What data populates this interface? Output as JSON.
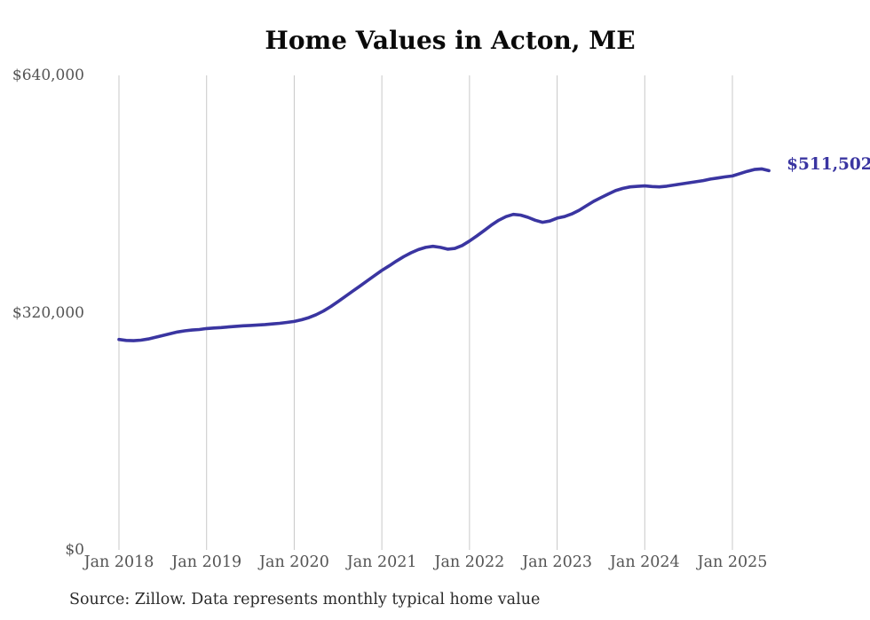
{
  "chart_data": {
    "type": "line",
    "title": "Home Values in Acton, ME",
    "series": [
      {
        "name": "Monthly typical home value",
        "values": [
          283900,
          282600,
          282200,
          282900,
          284500,
          286800,
          289300,
          291700,
          293900,
          295500,
          296500,
          297300,
          298600,
          299300,
          299900,
          300700,
          301600,
          302300,
          302800,
          303400,
          304000,
          304800,
          305700,
          306900,
          308200,
          310400,
          313300,
          317200,
          322200,
          328200,
          334900,
          341900,
          348900,
          355900,
          362900,
          370000,
          377000,
          383200,
          389600,
          395600,
          400700,
          405100,
          408100,
          409500,
          408100,
          405600,
          406600,
          410600,
          416600,
          423500,
          430600,
          438100,
          444600,
          449600,
          452600,
          451600,
          448600,
          444700,
          441900,
          443600,
          447500,
          449600,
          453100,
          458100,
          464100,
          470100,
          475100,
          480100,
          484600,
          487600,
          489600,
          490300,
          490900,
          490100,
          489600,
          490600,
          492100,
          493600,
          495100,
          496600,
          498100,
          500100,
          501600,
          503100,
          504400,
          507500,
          510600,
          513100,
          513900,
          511502
        ]
      }
    ],
    "x_start": "2018-01",
    "x_end": "2025-06",
    "frequency": "monthly",
    "x_tick_labels": [
      "Jan 2018",
      "Jan 2019",
      "Jan 2020",
      "Jan 2021",
      "Jan 2022",
      "Jan 2023",
      "Jan 2024",
      "Jan 2025"
    ],
    "y_tick_labels": [
      "$0",
      "$320,000",
      "$640,000"
    ],
    "y_tick_values": [
      0,
      320000,
      640000
    ],
    "ylim": [
      0,
      640000
    ],
    "grid": "vertical",
    "legend": "none",
    "line_color": "#3a35a1",
    "grid_color": "#c8c8c8",
    "end_label": "$511,502",
    "latest_value": 511502,
    "source_note": "Source: Zillow. Data represents monthly typical home value"
  }
}
